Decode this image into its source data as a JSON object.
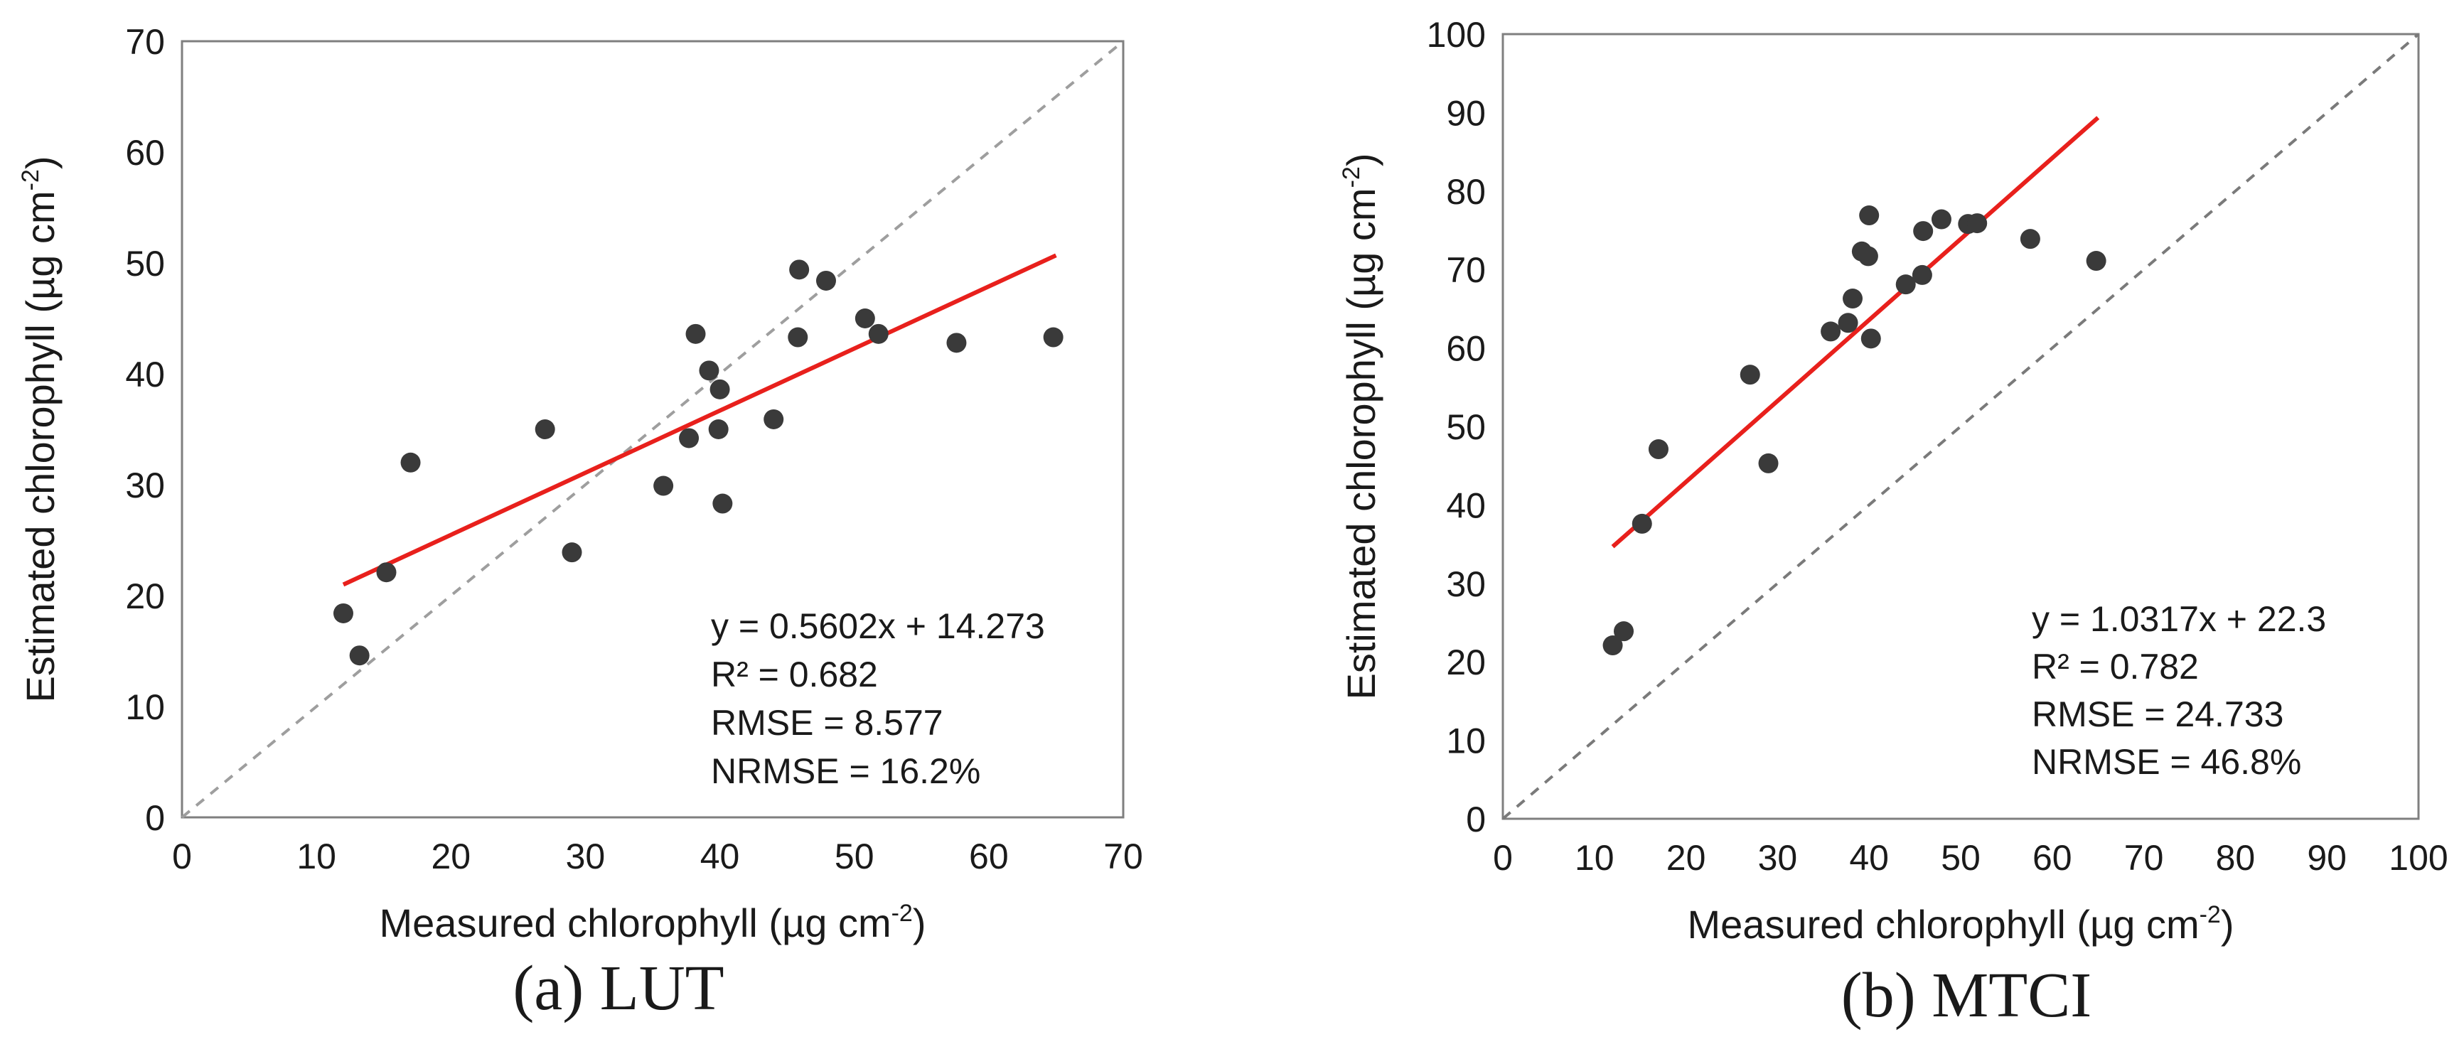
{
  "chart_data": [
    {
      "type": "scatter",
      "panel_caption": "(a) LUT",
      "xlabel": "Measured chlorophyll (µg cm",
      "ylabel": "Estimated chlorophyll (µg cm",
      "unit_exponent": "-2",
      "unit_close": ")",
      "xlim": [
        0,
        70
      ],
      "ylim": [
        0,
        70
      ],
      "xticks": [
        0,
        10,
        20,
        30,
        40,
        50,
        60,
        70
      ],
      "yticks": [
        0,
        10,
        20,
        30,
        40,
        50,
        60,
        70
      ],
      "x": [
        12.0,
        13.2,
        15.2,
        17.0,
        27.0,
        29.0,
        35.8,
        37.7,
        38.2,
        39.2,
        39.9,
        40.0,
        40.2,
        44.0,
        45.8,
        45.9,
        47.9,
        50.8,
        51.8,
        57.6,
        64.8
      ],
      "y": [
        18.4,
        14.6,
        22.1,
        32.0,
        35.0,
        23.9,
        29.9,
        34.2,
        43.6,
        40.3,
        35.0,
        38.6,
        28.3,
        35.9,
        43.3,
        49.4,
        48.4,
        45.0,
        43.6,
        42.8,
        43.3
      ],
      "trendline": {
        "slope": 0.5602,
        "intercept": 14.273,
        "x_range": [
          12,
          65
        ],
        "color": "#e8201c"
      },
      "identity_line": {
        "color": "#9e9e9e",
        "style": "dashed"
      },
      "point_color": "#3a3a3a",
      "annotations": [
        "y = 0.5602x + 14.273",
        "R² = 0.682",
        "RMSE = 8.577",
        "NRMSE = 16.2%"
      ]
    },
    {
      "type": "scatter",
      "panel_caption": "(b) MTCI",
      "xlabel": "Measured chlorophyll (µg cm",
      "ylabel": "Estimated chlorophyll (µg cm",
      "unit_exponent": "-2",
      "unit_close": ")",
      "xlim": [
        0,
        100
      ],
      "ylim": [
        0,
        100
      ],
      "xticks": [
        0,
        10,
        20,
        30,
        40,
        50,
        60,
        70,
        80,
        90,
        100
      ],
      "yticks": [
        0,
        10,
        20,
        30,
        40,
        50,
        60,
        70,
        80,
        90,
        100
      ],
      "x": [
        12.0,
        13.2,
        15.2,
        17.0,
        27.0,
        29.0,
        35.8,
        37.7,
        38.2,
        39.2,
        39.9,
        40.0,
        40.2,
        44.0,
        45.8,
        45.9,
        47.9,
        50.8,
        51.8,
        57.6,
        64.8
      ],
      "y": [
        22.1,
        23.9,
        37.6,
        47.1,
        56.6,
        45.3,
        62.1,
        63.2,
        66.3,
        72.3,
        71.7,
        76.9,
        61.2,
        68.1,
        69.3,
        74.9,
        76.4,
        75.8,
        75.9,
        73.9,
        71.1
      ],
      "trendline": {
        "slope": 1.0317,
        "intercept": 22.3,
        "x_range": [
          12,
          65
        ],
        "color": "#e8201c"
      },
      "identity_line": {
        "color": "#7a7a7a",
        "style": "dashed"
      },
      "point_color": "#3a3a3a",
      "annotations": [
        "y = 1.0317x + 22.3",
        "R² = 0.782",
        "RMSE = 24.733",
        "NRMSE = 46.8%"
      ]
    }
  ]
}
